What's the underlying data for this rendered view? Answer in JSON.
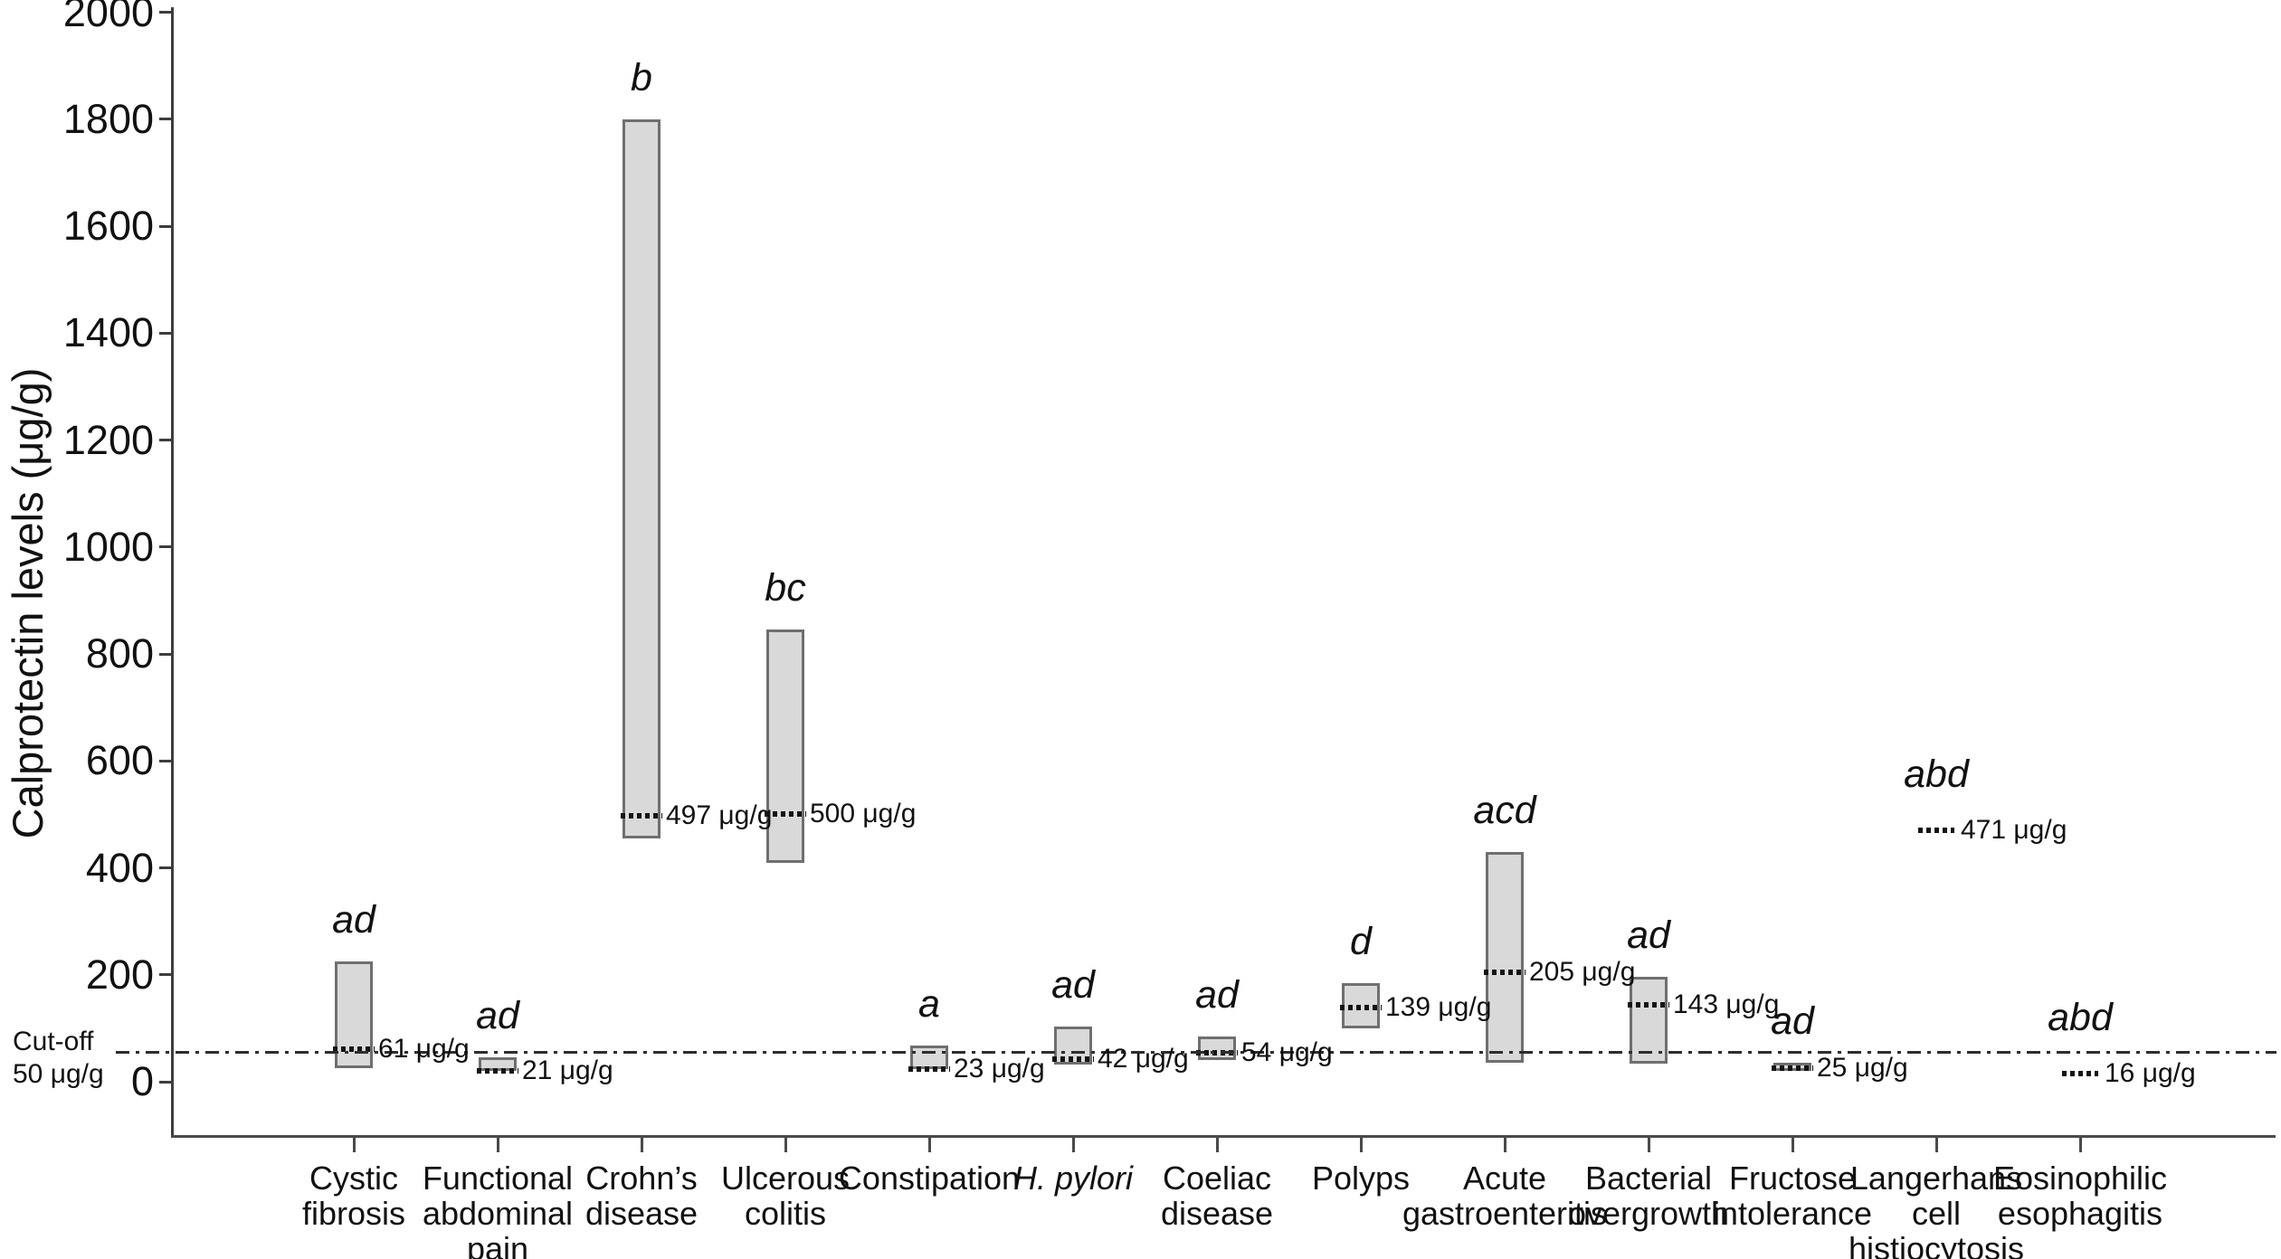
{
  "chart_data": {
    "type": "bar",
    "subtype": "floating-range-bars-with-median",
    "title": "",
    "ylabel": "Calprotectin levels (μg/g)",
    "xlabel": "",
    "units": "μg/g",
    "ylim": [
      -110,
      2000
    ],
    "yticks": [
      0,
      200,
      400,
      600,
      800,
      1000,
      1200,
      1400,
      1600,
      1800,
      2000
    ],
    "grid": false,
    "legend": "none",
    "cutoff": {
      "value": 50,
      "label_line1": "Cut-off",
      "label_line2": "50 μg/g"
    },
    "categories": [
      {
        "label_lines": [
          "Cystic",
          "fibrosis"
        ],
        "italic": false,
        "sig": "ad",
        "box": true,
        "min": 25,
        "max": 225,
        "median": 61,
        "median_label": "61 μg/g"
      },
      {
        "label_lines": [
          "Functional",
          "abdominal",
          "pain"
        ],
        "italic": false,
        "sig": "ad",
        "box": true,
        "min": 21,
        "max": 46,
        "median": 21,
        "median_label": "21 μg/g"
      },
      {
        "label_lines": [
          "Crohn’s",
          "disease"
        ],
        "italic": false,
        "sig": "b",
        "box": true,
        "min": 455,
        "max": 1800,
        "median": 497,
        "median_label": "497 μg/g"
      },
      {
        "label_lines": [
          "Ulcerous",
          "colitis"
        ],
        "italic": false,
        "sig": "bc",
        "box": true,
        "min": 410,
        "max": 845,
        "median": 500,
        "median_label": "500 μg/g"
      },
      {
        "label_lines": [
          "Constipation"
        ],
        "italic": false,
        "sig": "a",
        "box": true,
        "min": 23,
        "max": 68,
        "median": 23,
        "median_label": "23 μg/g"
      },
      {
        "label_lines": [
          "H. pylori"
        ],
        "italic": true,
        "sig": "ad",
        "box": true,
        "min": 32,
        "max": 103,
        "median": 42,
        "median_label": "42 μg/g"
      },
      {
        "label_lines": [
          "Coeliac",
          "disease"
        ],
        "italic": false,
        "sig": "ad",
        "box": true,
        "min": 40,
        "max": 85,
        "median": 54,
        "median_label": "54 μg/g"
      },
      {
        "label_lines": [
          "Polyps"
        ],
        "italic": false,
        "sig": "d",
        "box": true,
        "min": 100,
        "max": 185,
        "median": 139,
        "median_label": "139 μg/g"
      },
      {
        "label_lines": [
          "Acute",
          "gastroenteritis"
        ],
        "italic": false,
        "sig": "acd",
        "box": true,
        "min": 35,
        "max": 430,
        "median": 205,
        "median_label": "205 μg/g"
      },
      {
        "label_lines": [
          "Bacterial",
          "overgrowth"
        ],
        "italic": false,
        "sig": "ad",
        "box": true,
        "min": 33,
        "max": 197,
        "median": 143,
        "median_label": "143 μg/g"
      },
      {
        "label_lines": [
          "Fructose",
          "intolerance"
        ],
        "italic": false,
        "sig": "ad",
        "box": true,
        "min": 20,
        "max": 36,
        "median": 25,
        "median_label": "25 μg/g"
      },
      {
        "label_lines": [
          "Langerhans",
          "cell",
          "histiocytosis"
        ],
        "italic": false,
        "sig": "abd",
        "box": false,
        "min": null,
        "max": null,
        "median": 471,
        "median_label": "471 μg/g"
      },
      {
        "label_lines": [
          "Eosinophilic",
          "esophagitis"
        ],
        "italic": false,
        "sig": "abd",
        "box": false,
        "min": null,
        "max": null,
        "median": 16,
        "median_label": "16 μg/g"
      }
    ],
    "colors": {
      "background": "#ffffff",
      "bar_fill": "#d9d9d9",
      "bar_border": "#6f6f6f",
      "axis": "#3d3d3d",
      "median": "#141414",
      "cutoff_line": "#2e2e2e",
      "text": "#111111"
    }
  }
}
